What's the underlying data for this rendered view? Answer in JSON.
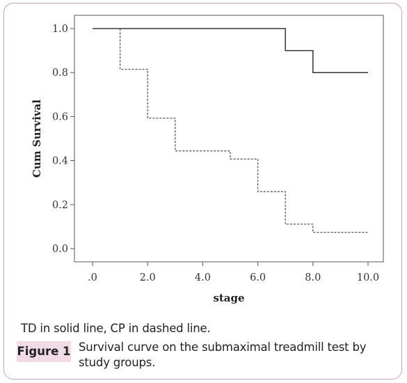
{
  "chart_data": {
    "type": "line",
    "title": "",
    "xlabel": "stage",
    "ylabel": "Cum Survival",
    "xlim": [
      0,
      10
    ],
    "ylim": [
      0,
      1
    ],
    "x_ticks": [
      ".0",
      "2.0",
      "4.0",
      "6.0",
      "8.0",
      "10.0"
    ],
    "y_ticks": [
      "0.0",
      "0.2",
      "0.4",
      "0.6",
      "0.8",
      "1.0"
    ],
    "grid": false,
    "series": [
      {
        "style": "solid",
        "color": "#333333",
        "points": [
          [
            0,
            1.0
          ],
          [
            7,
            1.0
          ],
          [
            7,
            0.9
          ],
          [
            8,
            0.9
          ],
          [
            8,
            0.8
          ],
          [
            10,
            0.8
          ]
        ]
      },
      {
        "style": "dashed",
        "color": "#555555",
        "points": [
          [
            0,
            1.0
          ],
          [
            1,
            1.0
          ],
          [
            1,
            0.815
          ],
          [
            2,
            0.815
          ],
          [
            2,
            0.593
          ],
          [
            3,
            0.593
          ],
          [
            3,
            0.444
          ],
          [
            5,
            0.444
          ],
          [
            5,
            0.407
          ],
          [
            6,
            0.407
          ],
          [
            6,
            0.259
          ],
          [
            7,
            0.259
          ],
          [
            7,
            0.111
          ],
          [
            8,
            0.111
          ],
          [
            8,
            0.074
          ],
          [
            10,
            0.074
          ]
        ]
      }
    ]
  },
  "caption": {
    "note": "TD in solid line, CP in dashed line.",
    "label": "Figure 1",
    "text": "Survival curve on the submaximal treadmill test by study groups."
  }
}
